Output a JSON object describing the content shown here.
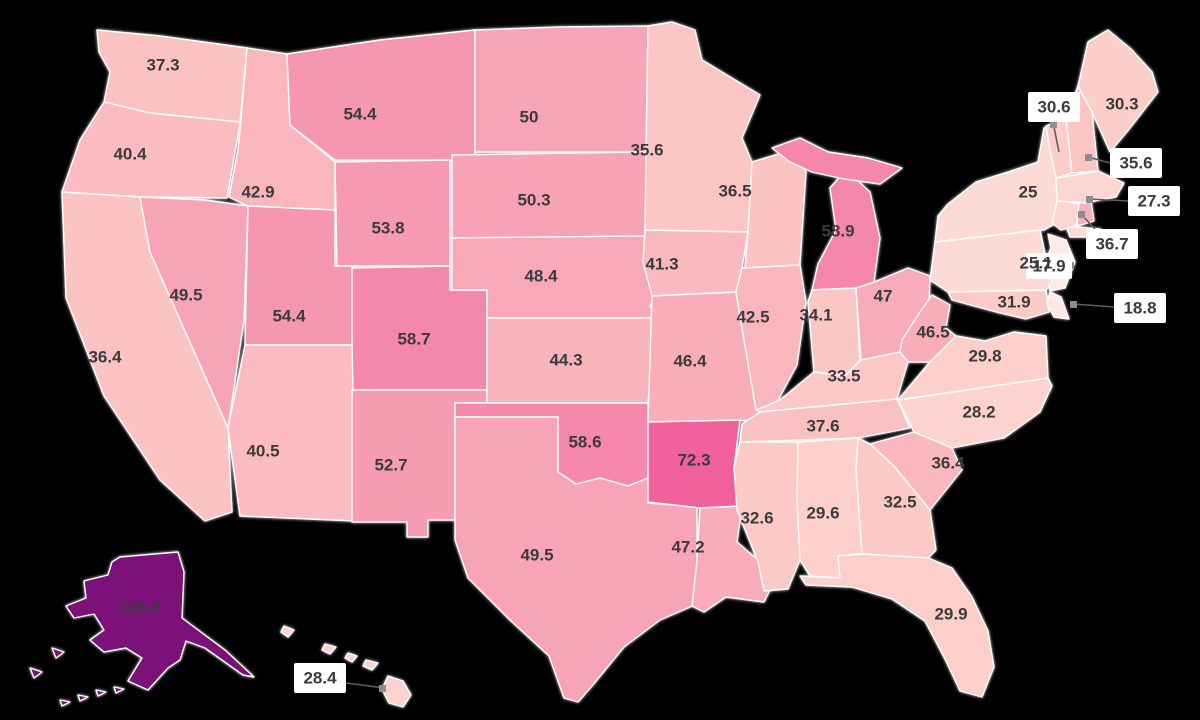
{
  "map": {
    "background_color": "#000000",
    "state_border_color": "#ffffff",
    "label_color": "#3b3b3b",
    "callout_background": "#ffffff",
    "leader_line_color": "#5f5f5f",
    "states": [
      {
        "abbr": "WA",
        "name": "Washington",
        "label": "37.3",
        "color": "#fbc2c2"
      },
      {
        "abbr": "OR",
        "name": "Oregon",
        "label": "40.4",
        "color": "#fabcc0"
      },
      {
        "abbr": "CA",
        "name": "California",
        "label": "36.4",
        "color": "#fbc4c3"
      },
      {
        "abbr": "NV",
        "name": "Nevada",
        "label": "49.5",
        "color": "#f7a5b6"
      },
      {
        "abbr": "ID",
        "name": "Idaho",
        "label": "42.9",
        "color": "#f9b6bd"
      },
      {
        "abbr": "MT",
        "name": "Montana",
        "label": "54.4",
        "color": "#f697b1"
      },
      {
        "abbr": "WY",
        "name": "Wyoming",
        "label": "53.8",
        "color": "#f699b2"
      },
      {
        "abbr": "UT",
        "name": "Utah",
        "label": "54.4",
        "color": "#f697b1"
      },
      {
        "abbr": "CO",
        "name": "Colorado",
        "label": "58.7",
        "color": "#f488ab"
      },
      {
        "abbr": "AZ",
        "name": "Arizona",
        "label": "40.5",
        "color": "#fabcc0"
      },
      {
        "abbr": "NM",
        "name": "New Mexico",
        "label": "52.7",
        "color": "#f69db3"
      },
      {
        "abbr": "ND",
        "name": "North Dakota",
        "label": "50",
        "color": "#f7a4b6"
      },
      {
        "abbr": "SD",
        "name": "South Dakota",
        "label": "50.3",
        "color": "#f7a3b5"
      },
      {
        "abbr": "NE",
        "name": "Nebraska",
        "label": "48.4",
        "color": "#f8a8b7"
      },
      {
        "abbr": "KS",
        "name": "Kansas",
        "label": "44.3",
        "color": "#f9b3bb"
      },
      {
        "abbr": "OK",
        "name": "Oklahoma",
        "label": "58.6",
        "color": "#f588ab"
      },
      {
        "abbr": "TX",
        "name": "Texas",
        "label": "49.5",
        "color": "#f7a5b6"
      },
      {
        "abbr": "MN",
        "name": "Minnesota",
        "label": "35.6",
        "color": "#fbc5c3"
      },
      {
        "abbr": "IA",
        "name": "Iowa",
        "label": "41.3",
        "color": "#fab9be"
      },
      {
        "abbr": "MO",
        "name": "Missouri",
        "label": "46.4",
        "color": "#f8adb9"
      },
      {
        "abbr": "AR",
        "name": "Arkansas",
        "label": "72.3",
        "color": "#f0609b"
      },
      {
        "abbr": "LA",
        "name": "Louisiana",
        "label": "47.2",
        "color": "#f8abb8"
      },
      {
        "abbr": "WI",
        "name": "Wisconsin",
        "label": "36.5",
        "color": "#fbc3c2"
      },
      {
        "abbr": "IL",
        "name": "Illinois",
        "label": "42.5",
        "color": "#f9b7bd"
      },
      {
        "abbr": "MI",
        "name": "Michigan",
        "label": "58.9",
        "color": "#f487aa"
      },
      {
        "abbr": "IN",
        "name": "Indiana",
        "label": "34.1",
        "color": "#fbc7c5"
      },
      {
        "abbr": "OH",
        "name": "Ohio",
        "label": "47",
        "color": "#f8acb9"
      },
      {
        "abbr": "KY",
        "name": "Kentucky",
        "label": "33.5",
        "color": "#fbc8c6"
      },
      {
        "abbr": "TN",
        "name": "Tennessee",
        "label": "37.6",
        "color": "#fac1c2"
      },
      {
        "abbr": "MS",
        "name": "Mississippi",
        "label": "32.6",
        "color": "#fbcac7"
      },
      {
        "abbr": "AL",
        "name": "Alabama",
        "label": "29.6",
        "color": "#fdd0cb"
      },
      {
        "abbr": "GA",
        "name": "Georgia",
        "label": "32.5",
        "color": "#fbcac7"
      },
      {
        "abbr": "FL",
        "name": "Florida",
        "label": "29.9",
        "color": "#fccfcb"
      },
      {
        "abbr": "SC",
        "name": "South Carolina",
        "label": "36.4",
        "color": "#fab8be"
      },
      {
        "abbr": "NC",
        "name": "North Carolina",
        "label": "28.2",
        "color": "#fcd3cf"
      },
      {
        "abbr": "VA",
        "name": "Virginia",
        "label": "29.8",
        "color": "#fccfcb"
      },
      {
        "abbr": "WV",
        "name": "West Virginia",
        "label": "46.5",
        "color": "#f8adb9"
      },
      {
        "abbr": "MD",
        "name": "Maryland",
        "label": "31.9",
        "color": "#fccbc8"
      },
      {
        "abbr": "DE",
        "name": "Delaware",
        "label": "18.8",
        "color": "#fde8e4"
      },
      {
        "abbr": "NJ",
        "name": "New Jersey",
        "label": "17.9",
        "color": "#fdeae6"
      },
      {
        "abbr": "PA",
        "name": "Pennsylvania",
        "label": "25.1",
        "color": "#fcdbd6"
      },
      {
        "abbr": "NY",
        "name": "New York",
        "label": "25",
        "color": "#fcdbd6"
      },
      {
        "abbr": "CT",
        "name": "Connecticut",
        "label": "",
        "color": "#fcd7d2"
      },
      {
        "abbr": "RI",
        "name": "Rhode Island",
        "label": "36.7",
        "color": "#f8b0ba"
      },
      {
        "abbr": "MA",
        "name": "Massachusetts",
        "label": "27.3",
        "color": "#fcd6d1"
      },
      {
        "abbr": "VT",
        "name": "Vermont",
        "label": "30.6",
        "color": "#fccdc9"
      },
      {
        "abbr": "NH",
        "name": "New Hampshire",
        "label": "35.6",
        "color": "#fbc5c3"
      },
      {
        "abbr": "ME",
        "name": "Maine",
        "label": "30.3",
        "color": "#fcceca"
      },
      {
        "abbr": "AK",
        "name": "Alaska",
        "label": "118.4",
        "color": "#7c117a"
      },
      {
        "abbr": "HI",
        "name": "Hawaii",
        "label": "28.4",
        "color": "#fcd2ce"
      }
    ]
  },
  "chart_data": {
    "type": "choropleth",
    "title": "",
    "legend": "none visible",
    "region": "United States by state",
    "min_value": 17.9,
    "max_value": 118.4,
    "color_scale_stops": [
      {
        "value": 17.9,
        "color": "#fdeae6"
      },
      {
        "value": 36.5,
        "color": "#fbc3c2"
      },
      {
        "value": 50,
        "color": "#f7a4b6"
      },
      {
        "value": 58.9,
        "color": "#f487aa"
      },
      {
        "value": 72.3,
        "color": "#f0609b"
      },
      {
        "value": 118.4,
        "color": "#7c117a"
      }
    ],
    "series": [
      {
        "state": "WA",
        "value": 37.3
      },
      {
        "state": "OR",
        "value": 40.4
      },
      {
        "state": "CA",
        "value": 36.4
      },
      {
        "state": "NV",
        "value": 49.5
      },
      {
        "state": "ID",
        "value": 42.9
      },
      {
        "state": "MT",
        "value": 54.4
      },
      {
        "state": "WY",
        "value": 53.8
      },
      {
        "state": "UT",
        "value": 54.4
      },
      {
        "state": "CO",
        "value": 58.7
      },
      {
        "state": "AZ",
        "value": 40.5
      },
      {
        "state": "NM",
        "value": 52.7
      },
      {
        "state": "ND",
        "value": 50
      },
      {
        "state": "SD",
        "value": 50.3
      },
      {
        "state": "NE",
        "value": 48.4
      },
      {
        "state": "KS",
        "value": 44.3
      },
      {
        "state": "OK",
        "value": 58.6
      },
      {
        "state": "TX",
        "value": 49.5
      },
      {
        "state": "MN",
        "value": 35.6
      },
      {
        "state": "IA",
        "value": 41.3
      },
      {
        "state": "MO",
        "value": 46.4
      },
      {
        "state": "AR",
        "value": 72.3
      },
      {
        "state": "LA",
        "value": 47.2
      },
      {
        "state": "WI",
        "value": 36.5
      },
      {
        "state": "IL",
        "value": 42.5
      },
      {
        "state": "MI",
        "value": 58.9
      },
      {
        "state": "IN",
        "value": 34.1
      },
      {
        "state": "OH",
        "value": 47
      },
      {
        "state": "KY",
        "value": 33.5
      },
      {
        "state": "TN",
        "value": 37.6
      },
      {
        "state": "MS",
        "value": 32.6
      },
      {
        "state": "AL",
        "value": 29.6
      },
      {
        "state": "GA",
        "value": 32.5
      },
      {
        "state": "FL",
        "value": 29.9
      },
      {
        "state": "SC",
        "value": 36.4
      },
      {
        "state": "NC",
        "value": 28.2
      },
      {
        "state": "VA",
        "value": 29.8
      },
      {
        "state": "WV",
        "value": 46.5
      },
      {
        "state": "MD",
        "value": 31.9
      },
      {
        "state": "DE",
        "value": 18.8
      },
      {
        "state": "NJ",
        "value": 17.9
      },
      {
        "state": "PA",
        "value": 25.1
      },
      {
        "state": "NY",
        "value": 25
      },
      {
        "state": "CT",
        "value": null
      },
      {
        "state": "RI",
        "value": 36.7
      },
      {
        "state": "MA",
        "value": 27.3
      },
      {
        "state": "VT",
        "value": 30.6
      },
      {
        "state": "NH",
        "value": 35.6
      },
      {
        "state": "ME",
        "value": 30.3
      },
      {
        "state": "AK",
        "value": 118.4
      },
      {
        "state": "HI",
        "value": 28.4
      }
    ]
  }
}
